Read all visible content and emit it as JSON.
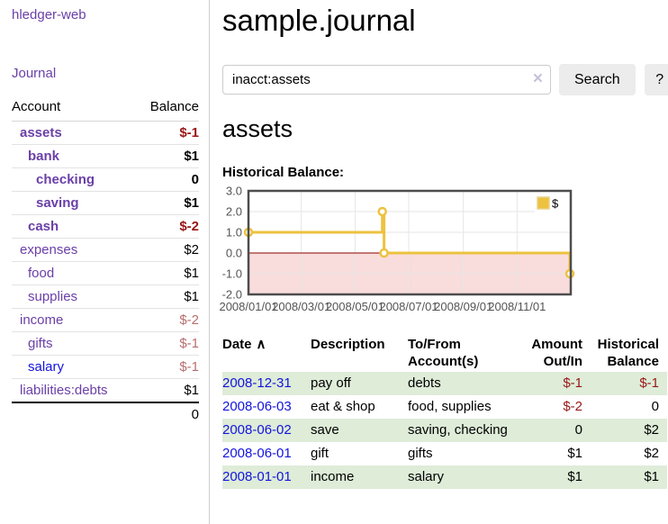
{
  "colors": {
    "link_purple": "#6a3fa8",
    "link_blue": "#1414dd",
    "negative_strong": "#991717",
    "negative_soft": "#b76e6e",
    "row_stripe_green": "#deecd8",
    "series_yellow": "#edc240",
    "negative_band_pink": "#f9dcdc",
    "zero_line_red": "#8b0000",
    "button_gray": "#ececec"
  },
  "sidebar": {
    "brand": "hledger-web",
    "nav": {
      "journal": "Journal"
    },
    "table": {
      "account_header": "Account",
      "balance_header": "Balance"
    },
    "accounts": [
      {
        "name": "assets",
        "indent": 0,
        "balance": "$-1",
        "bold": true,
        "balance_tone": "neg"
      },
      {
        "name": "bank",
        "indent": 1,
        "balance": "$1",
        "bold": true,
        "balance_tone": "pos"
      },
      {
        "name": "checking",
        "indent": 2,
        "balance": "0",
        "bold": true,
        "balance_tone": "pos"
      },
      {
        "name": "saving",
        "indent": 2,
        "balance": "$1",
        "bold": true,
        "balance_tone": "pos"
      },
      {
        "name": "cash",
        "indent": 1,
        "balance": "$-2",
        "bold": true,
        "balance_tone": "neg"
      },
      {
        "name": "expenses",
        "indent": 0,
        "balance": "$2",
        "bold": false,
        "balance_tone": "pos"
      },
      {
        "name": "food",
        "indent": 1,
        "balance": "$1",
        "bold": false,
        "balance_tone": "pos"
      },
      {
        "name": "supplies",
        "indent": 1,
        "balance": "$1",
        "bold": false,
        "balance_tone": "pos"
      },
      {
        "name": "income",
        "indent": 0,
        "balance": "$-2",
        "bold": false,
        "balance_tone": "neg-soft"
      },
      {
        "name": "gifts",
        "indent": 1,
        "balance": "$-1",
        "bold": false,
        "balance_tone": "neg-soft"
      },
      {
        "name": "salary",
        "indent": 1,
        "balance": "$-1",
        "bold": false,
        "balance_tone": "neg-soft",
        "link_color": "blue"
      },
      {
        "name": "liabilities:debts",
        "indent": 0,
        "balance": "$1",
        "bold": false,
        "balance_tone": "pos"
      }
    ],
    "total": "0"
  },
  "main": {
    "title": "sample.journal",
    "search": {
      "value": "inacct:assets",
      "clear_icon": "×",
      "search_button": "Search",
      "help_button": "?"
    },
    "account_title": "assets",
    "chart_label": "Historical Balance:"
  },
  "chart_data": {
    "type": "line",
    "title": "Historical Balance",
    "line_style": "step-after",
    "x_type": "date",
    "xlim": [
      "2008-01-01",
      "2009-01-01"
    ],
    "ylim": [
      -2,
      3
    ],
    "grid": true,
    "yticks": [
      {
        "value": 3,
        "label": "3.0"
      },
      {
        "value": 2,
        "label": "2.0"
      },
      {
        "value": 1,
        "label": "1.0"
      },
      {
        "value": 0,
        "label": "0.0"
      },
      {
        "value": -1,
        "label": "-1.0"
      },
      {
        "value": -2,
        "label": "-2.0"
      }
    ],
    "xticks": [
      {
        "date": "2008-01-01",
        "label": "2008/01/01"
      },
      {
        "date": "2008-03-01",
        "label": "2008/03/01"
      },
      {
        "date": "2008-05-01",
        "label": "2008/05/01"
      },
      {
        "date": "2008-07-01",
        "label": "2008/07/01"
      },
      {
        "date": "2008-09-01",
        "label": "2008/09/01"
      },
      {
        "date": "2008-11-01",
        "label": "2008/11/01"
      }
    ],
    "series": [
      {
        "name": "$",
        "color": "#edc240",
        "points": [
          {
            "x": "2008-01-01",
            "y": 1
          },
          {
            "x": "2008-06-01",
            "y": 2
          },
          {
            "x": "2008-06-03",
            "y": 0
          },
          {
            "x": "2008-12-31",
            "y": -1
          }
        ]
      }
    ],
    "legend": {
      "position": "top-right",
      "entries": [
        "$"
      ]
    },
    "negative_band_color": "#f9dcdc",
    "zero_line_color": "#8b0000"
  },
  "register": {
    "headers": {
      "date": "Date",
      "date_sort_indicator": "∧",
      "description": "Description",
      "accounts": "To/From\nAccount(s)",
      "amount": "Amount\nOut/In",
      "balance": "Historical\nBalance"
    },
    "rows": [
      {
        "date": "2008-12-31",
        "description": "pay off",
        "accounts": "debts",
        "amount": "$-1",
        "amount_negative": true,
        "balance": "$-1",
        "balance_negative": true
      },
      {
        "date": "2008-06-03",
        "description": "eat & shop",
        "accounts": "food, supplies",
        "amount": "$-2",
        "amount_negative": true,
        "balance": "0",
        "balance_negative": false
      },
      {
        "date": "2008-06-02",
        "description": "save",
        "accounts": "saving, checking",
        "amount": "0",
        "amount_negative": false,
        "balance": "$2",
        "balance_negative": false
      },
      {
        "date": "2008-06-01",
        "description": "gift",
        "accounts": "gifts",
        "amount": "$1",
        "amount_negative": false,
        "balance": "$2",
        "balance_negative": false
      },
      {
        "date": "2008-01-01",
        "description": "income",
        "accounts": "salary",
        "amount": "$1",
        "amount_negative": false,
        "balance": "$1",
        "balance_negative": false
      }
    ]
  }
}
